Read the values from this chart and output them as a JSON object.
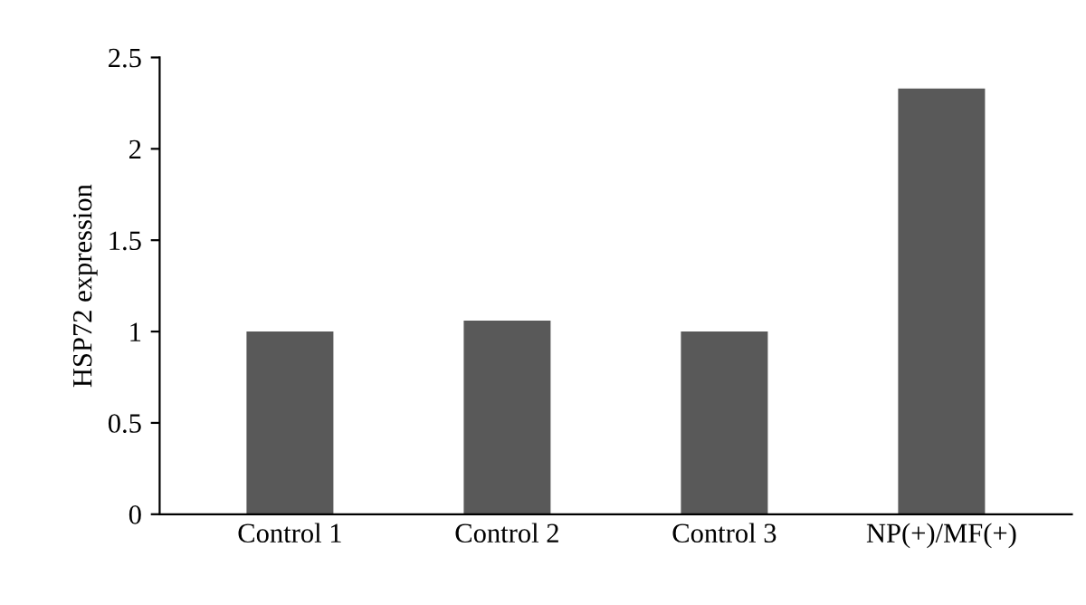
{
  "chart_data": {
    "type": "bar",
    "ylabel": "HSP72 expression",
    "categories": [
      "Control 1",
      "Control 2",
      "Control 3",
      "NP(+)/MF(+)"
    ],
    "values": [
      1.0,
      1.06,
      1.0,
      2.33
    ],
    "color": "#595959",
    "ylim": [
      0,
      2.5
    ],
    "yticks": [
      0,
      0.5,
      1,
      1.5,
      2,
      2.5
    ],
    "grid": false
  }
}
